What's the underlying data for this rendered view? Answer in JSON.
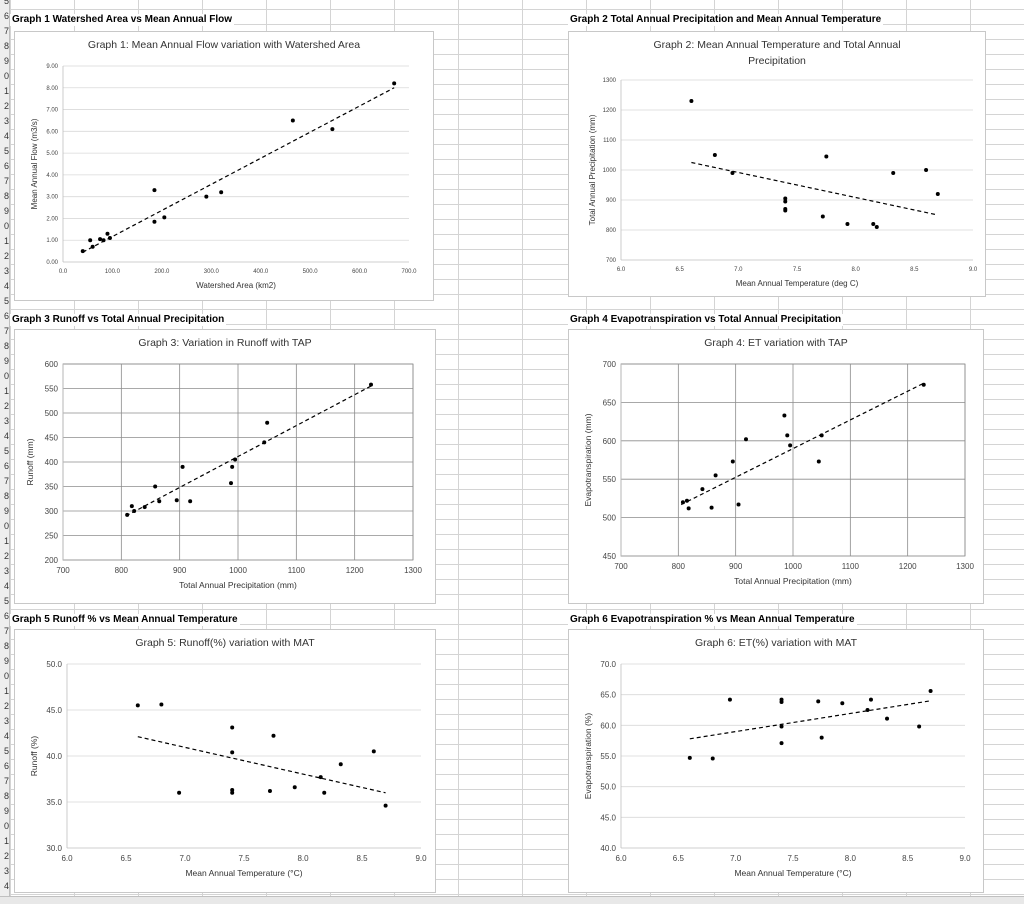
{
  "sheet": {
    "row_numbers": [
      "5",
      "6",
      "7",
      "8",
      "9",
      "0",
      "1",
      "2",
      "3",
      "4",
      "5",
      "6",
      "7",
      "8",
      "9",
      "0",
      "1",
      "2",
      "3",
      "4",
      "5",
      "6",
      "7",
      "8",
      "9",
      "0",
      "1",
      "2",
      "3",
      "4",
      "5",
      "6",
      "7",
      "8",
      "9",
      "0",
      "1",
      "2",
      "3",
      "4",
      "5",
      "6",
      "7",
      "8",
      "9",
      "0",
      "1",
      "2",
      "3",
      "4",
      "5",
      "6",
      "7",
      "8",
      "9",
      "0",
      "1",
      "2",
      "3",
      "4"
    ]
  },
  "headings": [
    "Graph 1 Watershed Area vs Mean Annual Flow",
    "Graph 2 Total Annual Precipitation and Mean Annual Temperature",
    "Graph 3 Runoff vs Total Annual Precipitation",
    "Graph 4 Evapotranspiration vs Total Annual Precipitation",
    "Graph 5 Runoff % vs Mean Annual Temperature",
    "Graph 6 Evapotranspiration % vs Mean Annual Temperature"
  ],
  "colors": {
    "marker": "#000000",
    "trendline": "#000000",
    "gridline": "#d9d9d9",
    "axis": "#bfbfbf"
  },
  "chart_data": [
    {
      "type": "scatter",
      "title": "Graph 1: Mean Annual Flow variation with Watershed Area",
      "xlabel": "Watershed Area (km2)",
      "ylabel": "Mean Annual Flow (m3/s)",
      "xlim": [
        0,
        700
      ],
      "ylim": [
        0,
        9
      ],
      "xticks": [
        "0.0",
        "100.0",
        "200.0",
        "300.0",
        "400.0",
        "500.0",
        "600.0",
        "700.0"
      ],
      "yticks": [
        "0.00",
        "1.00",
        "2.00",
        "3.00",
        "4.00",
        "5.00",
        "6.00",
        "7.00",
        "8.00",
        "9.00"
      ],
      "grid": "horizontal",
      "x": [
        40,
        55,
        60,
        75,
        82,
        90,
        95,
        185,
        185,
        205,
        290,
        320,
        465,
        545,
        670
      ],
      "y": [
        0.5,
        1.0,
        0.7,
        1.05,
        1.0,
        1.3,
        1.1,
        3.3,
        1.85,
        2.05,
        3.0,
        3.2,
        6.5,
        6.1,
        8.2
      ],
      "trendline": {
        "x": [
          40,
          670
        ],
        "y": [
          0.45,
          8.0
        ]
      }
    },
    {
      "type": "scatter",
      "title": "Graph 2: Mean Annual Temperature and Total Annual Precipitation",
      "title_lines": [
        "Graph 2: Mean Annual Temperature and Total Annual",
        "Precipitation"
      ],
      "xlabel": "Mean Annual Temperature (deg C)",
      "ylabel": "Total Annual Precipitation (mm)",
      "xlim": [
        6.0,
        9.0
      ],
      "ylim": [
        700,
        1300
      ],
      "xticks": [
        "6.0",
        "6.5",
        "7.0",
        "7.5",
        "8.0",
        "8.5",
        "9.0"
      ],
      "yticks": [
        "700",
        "800",
        "900",
        "1000",
        "1100",
        "1200",
        "1300"
      ],
      "grid": "horizontal",
      "x": [
        6.6,
        6.8,
        6.95,
        7.4,
        7.4,
        7.4,
        7.4,
        7.72,
        7.75,
        7.93,
        8.15,
        8.18,
        8.32,
        8.6,
        8.7
      ],
      "y": [
        1230,
        1050,
        990,
        905,
        895,
        870,
        865,
        845,
        1045,
        820,
        820,
        810,
        990,
        1000,
        920
      ],
      "trendline": {
        "x": [
          6.6,
          8.7
        ],
        "y": [
          1025,
          850
        ]
      }
    },
    {
      "type": "scatter",
      "title": "Graph 3: Variation in Runoff with TAP",
      "xlabel": "Total Annual Precipitation (mm)",
      "ylabel": "Runoff (mm)",
      "xlim": [
        700,
        1300
      ],
      "ylim": [
        200,
        600
      ],
      "xticks": [
        "700",
        "800",
        "900",
        "1000",
        "1100",
        "1200",
        "1300"
      ],
      "yticks": [
        "200",
        "250",
        "300",
        "350",
        "400",
        "450",
        "500",
        "550",
        "600"
      ],
      "grid": "both",
      "x": [
        810,
        818,
        822,
        840,
        858,
        865,
        895,
        905,
        918,
        988,
        990,
        995,
        1045,
        1050,
        1228
      ],
      "y": [
        292,
        310,
        300,
        308,
        350,
        320,
        322,
        390,
        320,
        357,
        390,
        405,
        440,
        480,
        558
      ],
      "trendline": {
        "x": [
          808,
          1228
        ],
        "y": [
          290,
          555
        ]
      }
    },
    {
      "type": "scatter",
      "title": "Graph 4: ET variation with TAP",
      "xlabel": "Total Annual Precipitation (mm)",
      "ylabel": "Evapotranspiration (mm)",
      "xlim": [
        700,
        1300
      ],
      "ylim": [
        450,
        700
      ],
      "xticks": [
        "700",
        "800",
        "900",
        "1000",
        "1100",
        "1200",
        "1300"
      ],
      "yticks": [
        "450",
        "500",
        "550",
        "600",
        "650",
        "700"
      ],
      "grid": "both",
      "x": [
        808,
        815,
        818,
        842,
        858,
        865,
        895,
        905,
        918,
        985,
        990,
        995,
        1045,
        1050,
        1228
      ],
      "y": [
        520,
        522,
        512,
        537,
        513,
        555,
        573,
        517,
        602,
        633,
        607,
        594,
        573,
        607,
        673
      ],
      "trendline": {
        "x": [
          805,
          1228
        ],
        "y": [
          517,
          675
        ]
      }
    },
    {
      "type": "scatter",
      "title": "Graph 5: Runoff(%) variation with MAT",
      "xlabel": "Mean Annual Temperature (°C)",
      "ylabel": "Runoff (%)",
      "xlim": [
        6.0,
        9.0
      ],
      "ylim": [
        30.0,
        50.0
      ],
      "xticks": [
        "6.0",
        "6.5",
        "7.0",
        "7.5",
        "8.0",
        "8.5",
        "9.0"
      ],
      "yticks": [
        "30.0",
        "35.0",
        "40.0",
        "45.0",
        "50.0"
      ],
      "grid": "horizontal",
      "x": [
        6.6,
        6.8,
        6.95,
        7.4,
        7.4,
        7.4,
        7.4,
        7.72,
        7.75,
        7.93,
        8.15,
        8.18,
        8.32,
        8.6,
        8.7
      ],
      "y": [
        45.5,
        45.6,
        36.0,
        43.1,
        40.4,
        36.3,
        36.0,
        36.2,
        42.2,
        36.6,
        37.7,
        36.0,
        39.1,
        40.5,
        34.6
      ],
      "trendline": {
        "x": [
          6.6,
          8.7
        ],
        "y": [
          42.1,
          36.0
        ]
      }
    },
    {
      "type": "scatter",
      "title": "Graph 6: ET(%) variation with MAT",
      "xlabel": "Mean Annual Temperature (°C)",
      "ylabel": "Evapotranspiration (%)",
      "xlim": [
        6.0,
        9.0
      ],
      "ylim": [
        40.0,
        70.0
      ],
      "xticks": [
        "6.0",
        "6.5",
        "7.0",
        "7.5",
        "8.0",
        "8.5",
        "9.0"
      ],
      "yticks": [
        "40.0",
        "45.0",
        "50.0",
        "55.0",
        "60.0",
        "65.0",
        "70.0"
      ],
      "grid": "horizontal",
      "x": [
        6.6,
        6.8,
        6.95,
        7.4,
        7.4,
        7.4,
        7.4,
        7.72,
        7.75,
        7.93,
        8.15,
        8.18,
        8.32,
        8.6,
        8.7
      ],
      "y": [
        54.7,
        54.6,
        64.2,
        64.2,
        63.8,
        59.8,
        57.1,
        63.9,
        58.0,
        63.6,
        62.5,
        64.2,
        61.1,
        59.8,
        65.6
      ],
      "trendline": {
        "x": [
          6.6,
          8.7
        ],
        "y": [
          57.8,
          64.0
        ]
      }
    }
  ]
}
